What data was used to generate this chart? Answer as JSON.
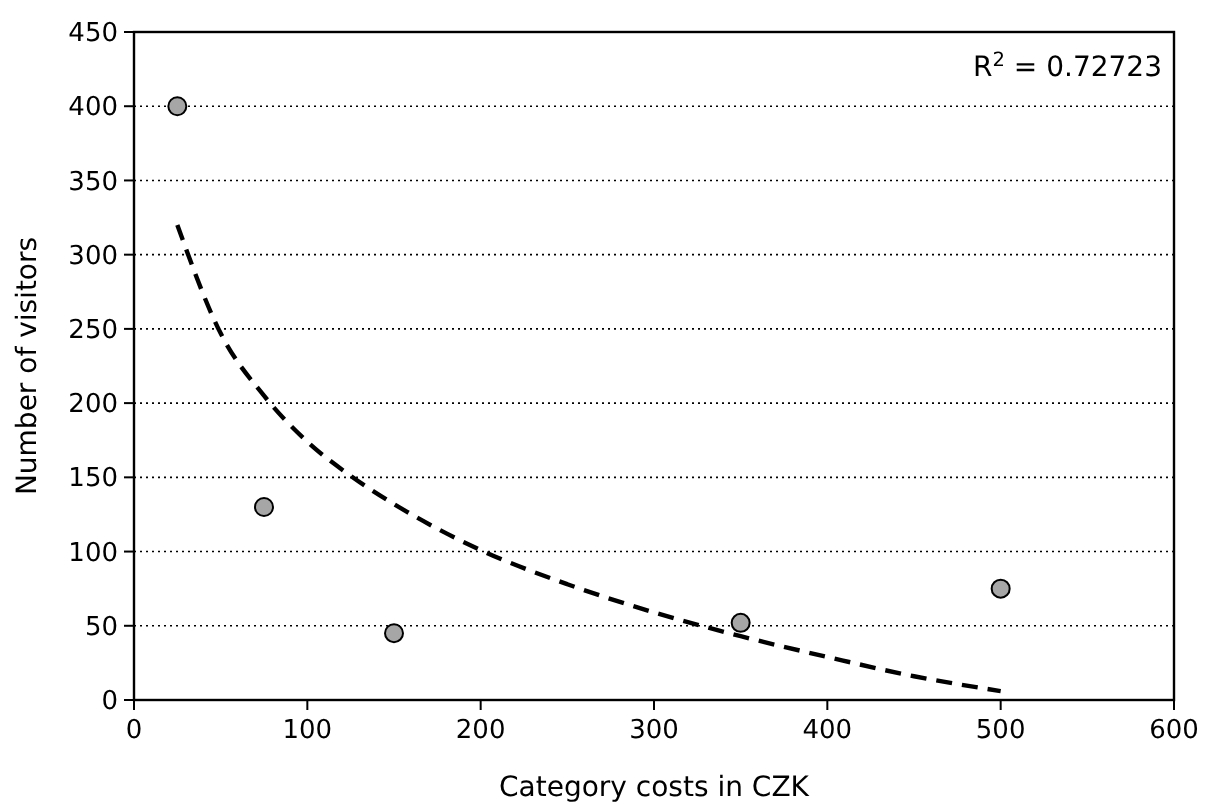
{
  "chart_data": {
    "type": "scatter",
    "xlabel": "Category costs in CZK",
    "ylabel": "Number of visitors",
    "xlim": [
      0,
      600
    ],
    "xticks": [
      0,
      100,
      200,
      300,
      400,
      500,
      600
    ],
    "ylim": [
      0,
      450
    ],
    "yticks": [
      0,
      50,
      100,
      150,
      200,
      250,
      300,
      350,
      400,
      450
    ],
    "grid": "y",
    "marker": "circle",
    "annotations": [
      "R$^{2}$ = 0.72723"
    ],
    "series": [
      {
        "color": "#a6a6a6",
        "x": [
          25,
          75,
          150,
          350,
          500
        ],
        "values": [
          400,
          130,
          45,
          52,
          75
        ]
      },
      {
        "type": "line",
        "color": "#000000",
        "marker": "none",
        "line_style": "dashed",
        "x": [
          25,
          50,
          75,
          100,
          125,
          150,
          200,
          250,
          300,
          350,
          400,
          450,
          500
        ],
        "values": [
          320,
          247,
          205,
          174,
          151,
          132,
          101,
          78,
          59,
          43,
          29,
          16,
          6
        ]
      }
    ]
  }
}
